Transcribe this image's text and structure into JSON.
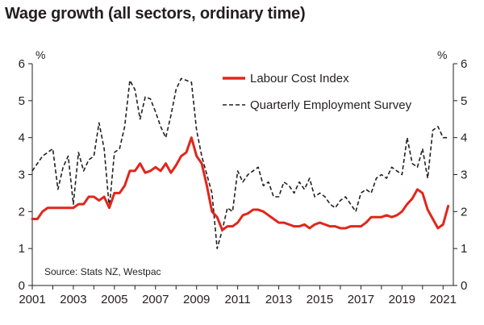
{
  "chart_data": {
    "type": "line",
    "title": "Wage growth (all sectors, ordinary time)",
    "ylabel_left": "%",
    "ylabel_right": "%",
    "ylim": [
      0,
      6
    ],
    "yticks": [
      0,
      1,
      2,
      3,
      4,
      5,
      6
    ],
    "xlim": [
      2001,
      2021.5
    ],
    "xticks": [
      2001,
      2003,
      2005,
      2007,
      2009,
      2011,
      2013,
      2015,
      2017,
      2019,
      2021
    ],
    "xtick_labels": [
      "2001",
      "2003",
      "2005",
      "2007",
      "2009",
      "2011",
      "2013",
      "2015",
      "2017",
      "2019",
      "2021"
    ],
    "source": "Source: Stats NZ, Westpac",
    "legend_position": "top-right",
    "series": [
      {
        "name": "Labour Cost Index",
        "color": "#e1261c",
        "style": "solid",
        "x": [
          2001.0,
          2001.25,
          2001.5,
          2001.75,
          2002.0,
          2002.25,
          2002.5,
          2002.75,
          2003.0,
          2003.25,
          2003.5,
          2003.75,
          2004.0,
          2004.25,
          2004.5,
          2004.75,
          2005.0,
          2005.25,
          2005.5,
          2005.75,
          2006.0,
          2006.25,
          2006.5,
          2006.75,
          2007.0,
          2007.25,
          2007.5,
          2007.75,
          2008.0,
          2008.25,
          2008.5,
          2008.75,
          2009.0,
          2009.25,
          2009.5,
          2009.75,
          2010.0,
          2010.25,
          2010.5,
          2010.75,
          2011.0,
          2011.25,
          2011.5,
          2011.75,
          2012.0,
          2012.25,
          2012.5,
          2012.75,
          2013.0,
          2013.25,
          2013.5,
          2013.75,
          2014.0,
          2014.25,
          2014.5,
          2014.75,
          2015.0,
          2015.25,
          2015.5,
          2015.75,
          2016.0,
          2016.25,
          2016.5,
          2016.75,
          2017.0,
          2017.25,
          2017.5,
          2017.75,
          2018.0,
          2018.25,
          2018.5,
          2018.75,
          2019.0,
          2019.25,
          2019.5,
          2019.75,
          2020.0,
          2020.25,
          2020.5,
          2020.75,
          2021.0,
          2021.25
        ],
        "values": [
          1.8,
          1.8,
          2.0,
          2.1,
          2.1,
          2.1,
          2.1,
          2.1,
          2.1,
          2.2,
          2.2,
          2.4,
          2.4,
          2.3,
          2.4,
          2.1,
          2.5,
          2.5,
          2.7,
          3.1,
          3.1,
          3.3,
          3.05,
          3.1,
          3.2,
          3.1,
          3.3,
          3.05,
          3.25,
          3.5,
          3.6,
          4.0,
          3.5,
          3.3,
          2.7,
          2.0,
          1.85,
          1.5,
          1.6,
          1.6,
          1.7,
          1.9,
          1.95,
          2.05,
          2.05,
          2.0,
          1.9,
          1.8,
          1.7,
          1.7,
          1.65,
          1.6,
          1.6,
          1.65,
          1.55,
          1.65,
          1.7,
          1.65,
          1.6,
          1.6,
          1.55,
          1.55,
          1.6,
          1.6,
          1.6,
          1.7,
          1.85,
          1.85,
          1.85,
          1.9,
          1.85,
          1.9,
          2.0,
          2.2,
          2.35,
          2.6,
          2.5,
          2.05,
          1.8,
          1.55,
          1.65,
          2.15
        ]
      },
      {
        "name": "Quarterly Employment Survey",
        "color": "#231f20",
        "style": "dashed",
        "x": [
          2001.0,
          2001.25,
          2001.5,
          2001.75,
          2002.0,
          2002.25,
          2002.5,
          2002.75,
          2003.0,
          2003.25,
          2003.5,
          2003.75,
          2004.0,
          2004.25,
          2004.5,
          2004.75,
          2005.0,
          2005.25,
          2005.5,
          2005.75,
          2006.0,
          2006.25,
          2006.5,
          2006.75,
          2007.0,
          2007.25,
          2007.5,
          2007.75,
          2008.0,
          2008.25,
          2008.5,
          2008.75,
          2009.0,
          2009.25,
          2009.5,
          2009.75,
          2010.0,
          2010.25,
          2010.5,
          2010.75,
          2011.0,
          2011.25,
          2011.5,
          2011.75,
          2012.0,
          2012.25,
          2012.5,
          2012.75,
          2013.0,
          2013.25,
          2013.5,
          2013.75,
          2014.0,
          2014.25,
          2014.5,
          2014.75,
          2015.0,
          2015.25,
          2015.5,
          2015.75,
          2016.0,
          2016.25,
          2016.5,
          2016.75,
          2017.0,
          2017.25,
          2017.5,
          2017.75,
          2018.0,
          2018.25,
          2018.5,
          2018.75,
          2019.0,
          2019.25,
          2019.5,
          2019.75,
          2020.0,
          2020.25,
          2020.5,
          2020.75,
          2021.0,
          2021.25
        ],
        "values": [
          3.1,
          3.3,
          3.5,
          3.6,
          3.7,
          2.6,
          3.2,
          3.5,
          2.2,
          3.6,
          3.1,
          3.4,
          3.5,
          4.4,
          3.7,
          2.1,
          3.6,
          3.7,
          4.3,
          5.55,
          5.3,
          4.5,
          5.1,
          5.05,
          4.7,
          4.3,
          4.0,
          4.6,
          5.3,
          5.6,
          5.55,
          5.5,
          4.2,
          3.5,
          3.0,
          2.5,
          1.0,
          1.5,
          2.1,
          2.0,
          3.1,
          2.8,
          3.0,
          3.1,
          3.2,
          2.7,
          2.8,
          2.4,
          2.4,
          2.8,
          2.7,
          2.5,
          2.8,
          2.6,
          2.9,
          2.4,
          2.5,
          2.4,
          2.2,
          2.1,
          2.3,
          2.4,
          2.2,
          2.0,
          2.5,
          2.6,
          2.5,
          2.9,
          3.0,
          2.9,
          3.2,
          3.1,
          3.0,
          4.0,
          3.3,
          3.2,
          3.7,
          2.9,
          4.2,
          4.3,
          4.0,
          4.0
        ]
      }
    ]
  }
}
